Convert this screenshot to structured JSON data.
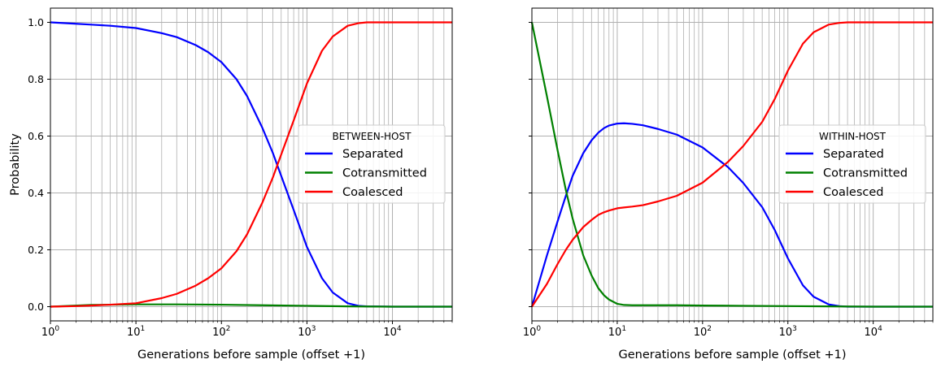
{
  "chart_data": [
    {
      "type": "line",
      "panel": "left",
      "xlabel": "Generations before sample (offset +1)",
      "ylabel": "Probability",
      "xscale": "log",
      "xlim": [
        1,
        50000
      ],
      "ylim": [
        -0.05,
        1.05
      ],
      "xticks": [
        {
          "value": 1,
          "base": "10",
          "exp": "0"
        },
        {
          "value": 10,
          "base": "10",
          "exp": "1"
        },
        {
          "value": 100,
          "base": "10",
          "exp": "2"
        },
        {
          "value": 1000,
          "base": "10",
          "exp": "3"
        },
        {
          "value": 10000,
          "base": "10",
          "exp": "4"
        }
      ],
      "yticks": [
        {
          "value": 0,
          "label": "0.0"
        },
        {
          "value": 0.2,
          "label": "0.2"
        },
        {
          "value": 0.4,
          "label": "0.4"
        },
        {
          "value": 0.6,
          "label": "0.6"
        },
        {
          "value": 0.8,
          "label": "0.8"
        },
        {
          "value": 1.0,
          "label": "1.0"
        }
      ],
      "grid": true,
      "legend": {
        "title": "BETWEEN-HOST",
        "placement": "center-right"
      },
      "series": [
        {
          "name": "Separated",
          "color": "#0000ff",
          "x": [
            1,
            2,
            3,
            5,
            10,
            20,
            30,
            50,
            70,
            100,
            150,
            200,
            300,
            400,
            500,
            700,
            1000,
            1500,
            2000,
            3000,
            4000,
            5000,
            10000,
            50000
          ],
          "y": [
            1.0,
            0.995,
            0.992,
            0.988,
            0.98,
            0.962,
            0.948,
            0.92,
            0.895,
            0.86,
            0.8,
            0.74,
            0.63,
            0.54,
            0.46,
            0.34,
            0.21,
            0.1,
            0.05,
            0.012,
            0.003,
            0.001,
            0.0,
            0.0
          ]
        },
        {
          "name": "Cotransmitted",
          "color": "#008000",
          "x": [
            1,
            3,
            10,
            30,
            100,
            300,
            1000,
            3000,
            10000,
            50000
          ],
          "y": [
            0.0,
            0.006,
            0.008,
            0.008,
            0.007,
            0.005,
            0.003,
            0.001,
            0.0,
            0.0
          ]
        },
        {
          "name": "Coalesced",
          "color": "#ff0000",
          "x": [
            1,
            2,
            3,
            5,
            10,
            20,
            30,
            50,
            70,
            100,
            150,
            200,
            300,
            400,
            500,
            700,
            1000,
            1500,
            2000,
            3000,
            4000,
            5000,
            10000,
            50000
          ],
          "y": [
            0.0,
            0.002,
            0.004,
            0.007,
            0.012,
            0.03,
            0.045,
            0.074,
            0.1,
            0.135,
            0.195,
            0.255,
            0.365,
            0.455,
            0.535,
            0.655,
            0.785,
            0.9,
            0.95,
            0.988,
            0.997,
            1.0,
            1.0,
            1.0
          ]
        }
      ]
    },
    {
      "type": "line",
      "panel": "right",
      "xlabel": "Generations before sample (offset +1)",
      "ylabel": "",
      "xscale": "log",
      "xlim": [
        1,
        50000
      ],
      "ylim": [
        -0.05,
        1.05
      ],
      "xticks": [
        {
          "value": 1,
          "base": "10",
          "exp": "0"
        },
        {
          "value": 10,
          "base": "10",
          "exp": "1"
        },
        {
          "value": 100,
          "base": "10",
          "exp": "2"
        },
        {
          "value": 1000,
          "base": "10",
          "exp": "3"
        },
        {
          "value": 10000,
          "base": "10",
          "exp": "4"
        }
      ],
      "yticks": [
        {
          "value": 0,
          "label": ""
        },
        {
          "value": 0.2,
          "label": ""
        },
        {
          "value": 0.4,
          "label": ""
        },
        {
          "value": 0.6,
          "label": ""
        },
        {
          "value": 0.8,
          "label": ""
        },
        {
          "value": 1.0,
          "label": ""
        }
      ],
      "grid": true,
      "legend": {
        "title": "WITHIN-HOST",
        "placement": "center-right"
      },
      "series": [
        {
          "name": "Separated",
          "color": "#0000ff",
          "x": [
            1,
            1.5,
            2,
            2.5,
            3,
            4,
            5,
            6,
            7,
            8,
            10,
            12,
            15,
            20,
            30,
            50,
            100,
            200,
            300,
            500,
            700,
            1000,
            1500,
            2000,
            3000,
            4000,
            5000,
            10000,
            50000
          ],
          "y": [
            0.0,
            0.18,
            0.3,
            0.39,
            0.46,
            0.54,
            0.585,
            0.612,
            0.628,
            0.637,
            0.644,
            0.645,
            0.643,
            0.638,
            0.625,
            0.605,
            0.56,
            0.49,
            0.435,
            0.35,
            0.27,
            0.17,
            0.075,
            0.035,
            0.008,
            0.002,
            0.0,
            0.0,
            0.0
          ]
        },
        {
          "name": "Cotransmitted",
          "color": "#008000",
          "x": [
            1,
            1.5,
            2,
            2.5,
            3,
            4,
            5,
            6,
            7,
            8,
            10,
            12,
            15,
            20,
            30,
            50,
            100,
            300,
            1000,
            10000,
            50000
          ],
          "y": [
            1.0,
            0.74,
            0.55,
            0.41,
            0.31,
            0.18,
            0.11,
            0.065,
            0.04,
            0.025,
            0.01,
            0.006,
            0.005,
            0.005,
            0.005,
            0.005,
            0.004,
            0.003,
            0.002,
            0.0,
            0.0
          ]
        },
        {
          "name": "Coalesced",
          "color": "#ff0000",
          "x": [
            1,
            1.5,
            2,
            2.5,
            3,
            4,
            5,
            6,
            7,
            8,
            10,
            12,
            15,
            20,
            30,
            50,
            100,
            200,
            300,
            500,
            700,
            1000,
            1500,
            2000,
            3000,
            4000,
            5000,
            10000,
            50000
          ],
          "y": [
            0.0,
            0.08,
            0.15,
            0.2,
            0.235,
            0.28,
            0.305,
            0.323,
            0.332,
            0.338,
            0.346,
            0.349,
            0.352,
            0.357,
            0.37,
            0.39,
            0.436,
            0.51,
            0.565,
            0.65,
            0.73,
            0.83,
            0.925,
            0.965,
            0.992,
            0.998,
            1.0,
            1.0,
            1.0
          ]
        }
      ]
    }
  ]
}
